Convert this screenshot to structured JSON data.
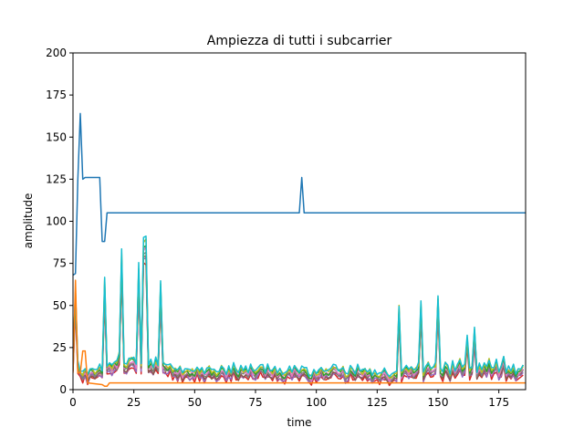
{
  "chart_data": {
    "type": "line",
    "title": "Ampiezza di tutti i subcarrier",
    "xlabel": "time",
    "ylabel": "amplitude",
    "xlim": [
      0,
      186
    ],
    "ylim": [
      0,
      200
    ],
    "xticks": [
      0,
      25,
      50,
      75,
      100,
      125,
      150,
      175
    ],
    "yticks": [
      0,
      25,
      50,
      75,
      100,
      125,
      150,
      175,
      200
    ],
    "grid": false,
    "legend": "none",
    "series_count": 10,
    "series": [
      {
        "color": "#1f77b4",
        "points": [
          [
            0,
            68
          ],
          [
            1,
            69
          ],
          [
            2,
            125
          ],
          [
            3,
            164
          ],
          [
            4,
            125
          ],
          [
            5,
            126
          ],
          [
            6,
            126
          ],
          [
            8,
            126
          ],
          [
            10,
            126
          ],
          [
            11,
            126
          ],
          [
            12,
            88
          ],
          [
            13,
            88
          ],
          [
            14,
            105
          ],
          [
            15,
            105
          ],
          [
            50,
            105
          ],
          [
            93,
            105
          ],
          [
            94,
            126
          ],
          [
            95,
            105
          ],
          [
            186,
            105
          ]
        ]
      },
      {
        "color": "#ff7f0e",
        "points": [
          [
            0,
            10
          ],
          [
            1,
            65
          ],
          [
            2,
            10
          ],
          [
            3,
            10
          ],
          [
            4,
            23
          ],
          [
            5,
            23
          ],
          [
            6,
            4
          ],
          [
            12,
            3
          ],
          [
            13,
            2
          ],
          [
            14,
            2
          ],
          [
            15,
            4
          ],
          [
            20,
            4
          ],
          [
            186,
            4
          ]
        ]
      }
    ],
    "noise_series": {
      "colors": [
        "#d62728",
        "#9467bd",
        "#8c564b",
        "#7f7f7f",
        "#e377c2",
        "#2ca02c",
        "#bcbd22",
        "#17becf"
      ],
      "base": [
        [
          0,
          15
        ],
        [
          1,
          55
        ],
        [
          2,
          14
        ],
        [
          3,
          10
        ],
        [
          4,
          8
        ],
        [
          5,
          11
        ],
        [
          6,
          7
        ],
        [
          7,
          10
        ],
        [
          8,
          11
        ],
        [
          9,
          9
        ],
        [
          10,
          11
        ],
        [
          11,
          12
        ],
        [
          12,
          10
        ],
        [
          13,
          62
        ],
        [
          14,
          12
        ],
        [
          15,
          14
        ],
        [
          16,
          12
        ],
        [
          17,
          15
        ],
        [
          18,
          14
        ],
        [
          19,
          20
        ],
        [
          20,
          78
        ],
        [
          21,
          14
        ],
        [
          22,
          13
        ],
        [
          23,
          16
        ],
        [
          24,
          17
        ],
        [
          25,
          16
        ],
        [
          26,
          14
        ],
        [
          27,
          70
        ],
        [
          28,
          14
        ],
        [
          29,
          85
        ],
        [
          30,
          86
        ],
        [
          31,
          13
        ],
        [
          32,
          15
        ],
        [
          33,
          12
        ],
        [
          34,
          16
        ],
        [
          35,
          13
        ],
        [
          36,
          60
        ],
        [
          37,
          14
        ],
        [
          38,
          13
        ],
        [
          39,
          12
        ],
        [
          40,
          14
        ],
        [
          41,
          10
        ],
        [
          42,
          11
        ],
        [
          43,
          9
        ],
        [
          44,
          12
        ],
        [
          45,
          8
        ],
        [
          46,
          10
        ],
        [
          47,
          11
        ],
        [
          48,
          9
        ],
        [
          49,
          10
        ],
        [
          50,
          8
        ],
        [
          51,
          12
        ],
        [
          52,
          9
        ],
        [
          53,
          11
        ],
        [
          54,
          8
        ],
        [
          55,
          10
        ],
        [
          56,
          12
        ],
        [
          57,
          9
        ],
        [
          58,
          11
        ],
        [
          59,
          8
        ],
        [
          60,
          9
        ],
        [
          61,
          12
        ],
        [
          62,
          10
        ],
        [
          63,
          8
        ],
        [
          64,
          11
        ],
        [
          65,
          9
        ],
        [
          66,
          13
        ],
        [
          67,
          10
        ],
        [
          68,
          8
        ],
        [
          69,
          12
        ],
        [
          70,
          10
        ],
        [
          71,
          11
        ],
        [
          72,
          9
        ],
        [
          73,
          12
        ],
        [
          74,
          10
        ],
        [
          75,
          9
        ],
        [
          76,
          11
        ],
        [
          77,
          13
        ],
        [
          78,
          12
        ],
        [
          79,
          9
        ],
        [
          80,
          12
        ],
        [
          81,
          10
        ],
        [
          82,
          9
        ],
        [
          83,
          12
        ],
        [
          84,
          8
        ],
        [
          85,
          10
        ],
        [
          86,
          8
        ],
        [
          87,
          7
        ],
        [
          88,
          10
        ],
        [
          89,
          11
        ],
        [
          90,
          9
        ],
        [
          91,
          12
        ],
        [
          92,
          10
        ],
        [
          93,
          9
        ],
        [
          94,
          11
        ],
        [
          95,
          12
        ],
        [
          96,
          10
        ],
        [
          97,
          7
        ],
        [
          98,
          6
        ],
        [
          99,
          10
        ],
        [
          100,
          8
        ],
        [
          101,
          9
        ],
        [
          102,
          12
        ],
        [
          103,
          8
        ],
        [
          104,
          10
        ],
        [
          105,
          9
        ],
        [
          106,
          11
        ],
        [
          107,
          13
        ],
        [
          108,
          12
        ],
        [
          109,
          10
        ],
        [
          110,
          9
        ],
        [
          111,
          12
        ],
        [
          112,
          7
        ],
        [
          113,
          8
        ],
        [
          114,
          12
        ],
        [
          115,
          10
        ],
        [
          116,
          8
        ],
        [
          117,
          12
        ],
        [
          118,
          10
        ],
        [
          119,
          9
        ],
        [
          120,
          11
        ],
        [
          121,
          8
        ],
        [
          122,
          10
        ],
        [
          123,
          7
        ],
        [
          124,
          9
        ],
        [
          125,
          8
        ],
        [
          126,
          7
        ],
        [
          127,
          9
        ],
        [
          128,
          10
        ],
        [
          129,
          8
        ],
        [
          130,
          6
        ],
        [
          131,
          7
        ],
        [
          132,
          9
        ],
        [
          133,
          8
        ],
        [
          134,
          47
        ],
        [
          135,
          8
        ],
        [
          136,
          11
        ],
        [
          137,
          12
        ],
        [
          138,
          10
        ],
        [
          139,
          12
        ],
        [
          140,
          9
        ],
        [
          141,
          11
        ],
        [
          142,
          13
        ],
        [
          143,
          50
        ],
        [
          144,
          8
        ],
        [
          145,
          12
        ],
        [
          146,
          14
        ],
        [
          147,
          10
        ],
        [
          148,
          12
        ],
        [
          149,
          13
        ],
        [
          150,
          53
        ],
        [
          151,
          10
        ],
        [
          152,
          9
        ],
        [
          153,
          14
        ],
        [
          154,
          12
        ],
        [
          155,
          8
        ],
        [
          156,
          14
        ],
        [
          157,
          10
        ],
        [
          158,
          12
        ],
        [
          159,
          16
        ],
        [
          160,
          11
        ],
        [
          161,
          13
        ],
        [
          162,
          30
        ],
        [
          163,
          10
        ],
        [
          164,
          12
        ],
        [
          165,
          33
        ],
        [
          166,
          9
        ],
        [
          167,
          13
        ],
        [
          168,
          10
        ],
        [
          169,
          14
        ],
        [
          170,
          11
        ],
        [
          171,
          16
        ],
        [
          172,
          10
        ],
        [
          173,
          12
        ],
        [
          174,
          15
        ],
        [
          175,
          9
        ],
        [
          176,
          12
        ],
        [
          177,
          17
        ],
        [
          178,
          9
        ],
        [
          179,
          11
        ],
        [
          180,
          10
        ],
        [
          181,
          12
        ],
        [
          182,
          8
        ],
        [
          183,
          10
        ],
        [
          184,
          10
        ],
        [
          185,
          13
        ]
      ]
    }
  }
}
